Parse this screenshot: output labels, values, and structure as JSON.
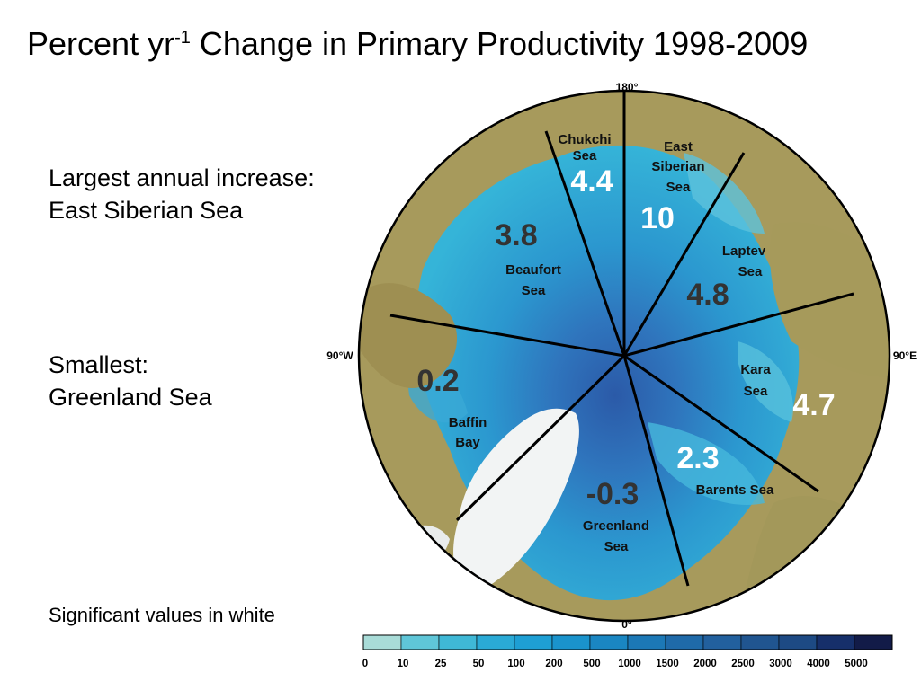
{
  "title": {
    "prefix": "Percent yr",
    "sup": "-1",
    "suffix": " Change in Primary Productivity 1998-2009"
  },
  "notes": {
    "largest_label": "Largest annual increase:",
    "largest_value": "East Siberian Sea",
    "smallest_label": "Smallest:",
    "smallest_value": "Greenland Sea",
    "significance": "Significant values in white"
  },
  "map_labels": {
    "top": "180°",
    "left": "90°W",
    "right": "90°E",
    "bottom": "0°"
  },
  "regions": [
    {
      "name_lines": [
        "Chukchi",
        "Sea"
      ],
      "value": "4.4",
      "significant": true
    },
    {
      "name_lines": [
        "East",
        "Siberian",
        "Sea"
      ],
      "value": "10",
      "significant": true
    },
    {
      "name_lines": [
        "Laptev",
        "Sea"
      ],
      "value": "4.8",
      "significant": false
    },
    {
      "name_lines": [
        "Kara",
        "Sea"
      ],
      "value": "4.7",
      "significant": true
    },
    {
      "name_lines": [
        "Barents Sea"
      ],
      "value": "2.3",
      "significant": true
    },
    {
      "name_lines": [
        "Greenland",
        "Sea"
      ],
      "value": "-0.3",
      "significant": false
    },
    {
      "name_lines": [
        "Baffin",
        "Bay"
      ],
      "value": "0.2",
      "significant": false
    },
    {
      "name_lines": [
        "Beaufort",
        "Sea"
      ],
      "value": "3.8",
      "significant": false
    }
  ],
  "legend": {
    "ticks": [
      "0",
      "10",
      "25",
      "50",
      "100",
      "200",
      "500",
      "1000",
      "1500",
      "2000",
      "2500",
      "3000",
      "4000",
      "5000"
    ],
    "colors": [
      "#a9dcd8",
      "#5fc6d8",
      "#3fb8d6",
      "#2aaad6",
      "#1e9fd4",
      "#1a93cc",
      "#1a86c2",
      "#1c78b6",
      "#1f6aa9",
      "#22609e",
      "#205590",
      "#1d4a84",
      "#162f6a",
      "#121b48"
    ]
  },
  "colors": {
    "land": "#a79a5c",
    "shelf_water": "#36b3d8",
    "deep_water": "#2a77bb",
    "ice": "#f2f4f4",
    "significant": "#ffffff",
    "nonsignificant": "#333333"
  }
}
